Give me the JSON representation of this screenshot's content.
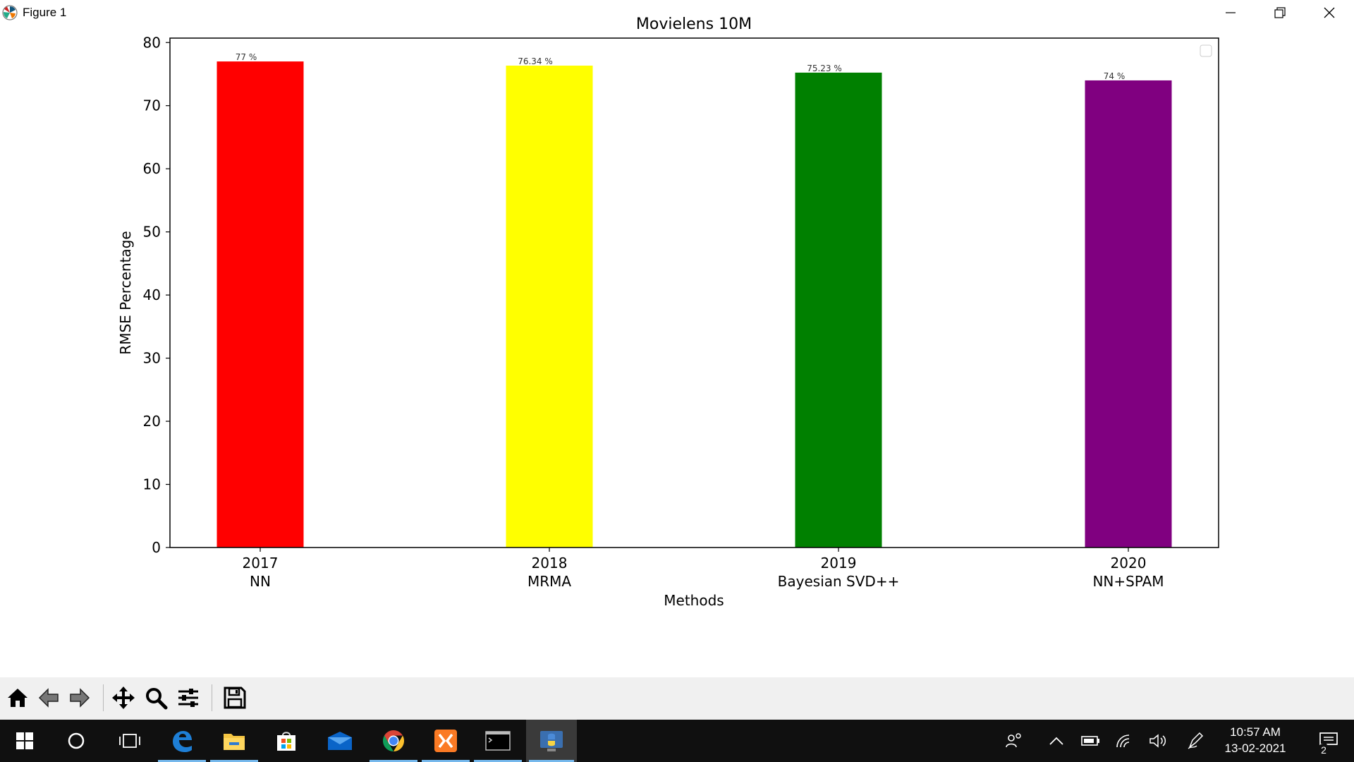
{
  "window": {
    "title": "Figure 1"
  },
  "chart_data": {
    "type": "bar",
    "title": "Movielens 10M",
    "xlabel": "Methods",
    "ylabel": "RMSE Percentage",
    "ylim": [
      0,
      80
    ],
    "yticks": [
      0,
      10,
      20,
      30,
      40,
      50,
      60,
      70,
      80
    ],
    "grid": false,
    "legend": "top-right (empty)",
    "categories": [
      {
        "year": "2017",
        "method": "NN"
      },
      {
        "year": "2018",
        "method": "MRMA"
      },
      {
        "year": "2019",
        "method": "Bayesian SVD++"
      },
      {
        "year": "2020",
        "method": "NN+SPAM"
      }
    ],
    "values": [
      77,
      76.34,
      75.23,
      74
    ],
    "data_labels": [
      "77 %",
      "76.34 %",
      "75.23 %",
      "74 %"
    ],
    "colors": [
      "#ff0000",
      "#ffff00",
      "#008000",
      "#800080"
    ]
  },
  "toolbar": {
    "buttons": [
      {
        "name": "home",
        "icon": "home-icon"
      },
      {
        "name": "back",
        "icon": "arrow-left-icon"
      },
      {
        "name": "forward",
        "icon": "arrow-right-icon"
      },
      {
        "name": "pan",
        "icon": "move-icon"
      },
      {
        "name": "zoom",
        "icon": "magnifier-icon"
      },
      {
        "name": "configure-subplots",
        "icon": "sliders-icon"
      },
      {
        "name": "save",
        "icon": "floppy-disk-icon"
      }
    ]
  },
  "taskbar": {
    "clock_time": "10:57 AM",
    "clock_date": "13-02-2021",
    "notification_count": "2",
    "apps": [
      "windows-start-icon",
      "cortana-icon",
      "task-view-icon",
      "edge-icon",
      "file-explorer-icon",
      "store-icon",
      "mail-icon",
      "chrome-icon",
      "xampp-icon",
      "cmd-icon",
      "python-icon"
    ]
  }
}
